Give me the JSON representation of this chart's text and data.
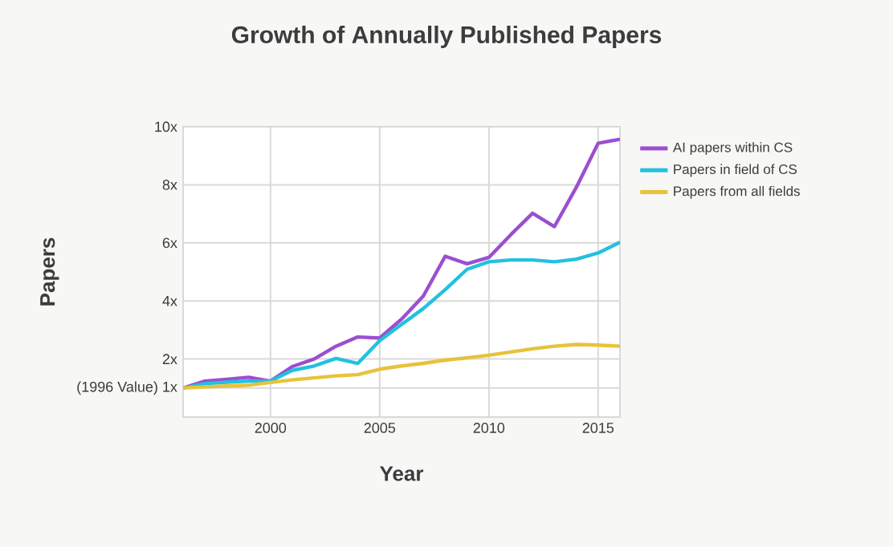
{
  "chart_data": {
    "type": "line",
    "title": "Growth of Annually Published Papers",
    "xlabel": "Year",
    "ylabel": "Papers",
    "x": [
      1996,
      1997,
      1998,
      1999,
      2000,
      2001,
      2002,
      2003,
      2004,
      2005,
      2006,
      2007,
      2008,
      2009,
      2010,
      2011,
      2012,
      2013,
      2014,
      2015,
      2016
    ],
    "series": [
      {
        "name": "AI papers within CS",
        "color": "#9b4fd0",
        "values": [
          1,
          1.24,
          1.3,
          1.37,
          1.24,
          1.74,
          2.0,
          2.44,
          2.76,
          2.72,
          3.37,
          4.17,
          5.54,
          5.28,
          5.5,
          6.28,
          7.02,
          6.56,
          7.91,
          9.43,
          9.57
        ]
      },
      {
        "name": "Papers in field of CS",
        "color": "#22c1e0",
        "values": [
          1,
          1.15,
          1.2,
          1.24,
          1.24,
          1.61,
          1.76,
          2.02,
          1.85,
          2.63,
          3.19,
          3.74,
          4.39,
          5.09,
          5.35,
          5.41,
          5.41,
          5.35,
          5.44,
          5.65,
          6.02
        ]
      },
      {
        "name": "Papers from all fields",
        "color": "#e8c23a",
        "values": [
          1,
          1.04,
          1.07,
          1.1,
          1.19,
          1.28,
          1.35,
          1.42,
          1.46,
          1.65,
          1.76,
          1.85,
          1.96,
          2.04,
          2.13,
          2.24,
          2.35,
          2.44,
          2.5,
          2.48,
          2.44
        ]
      }
    ],
    "xlim": [
      1996,
      2016
    ],
    "xticks": [
      2000,
      2005,
      2010,
      2015
    ],
    "ylim": [
      0,
      10
    ],
    "yticks": [
      {
        "value": 1,
        "label": "(1996 Value) 1x"
      },
      {
        "value": 2,
        "label": "2x"
      },
      {
        "value": 4,
        "label": "4x"
      },
      {
        "value": 6,
        "label": "6x"
      },
      {
        "value": 8,
        "label": "8x"
      },
      {
        "value": 10,
        "label": "10x"
      }
    ],
    "grid": true,
    "legend": "right",
    "marker": "none",
    "line_style": "solid"
  }
}
